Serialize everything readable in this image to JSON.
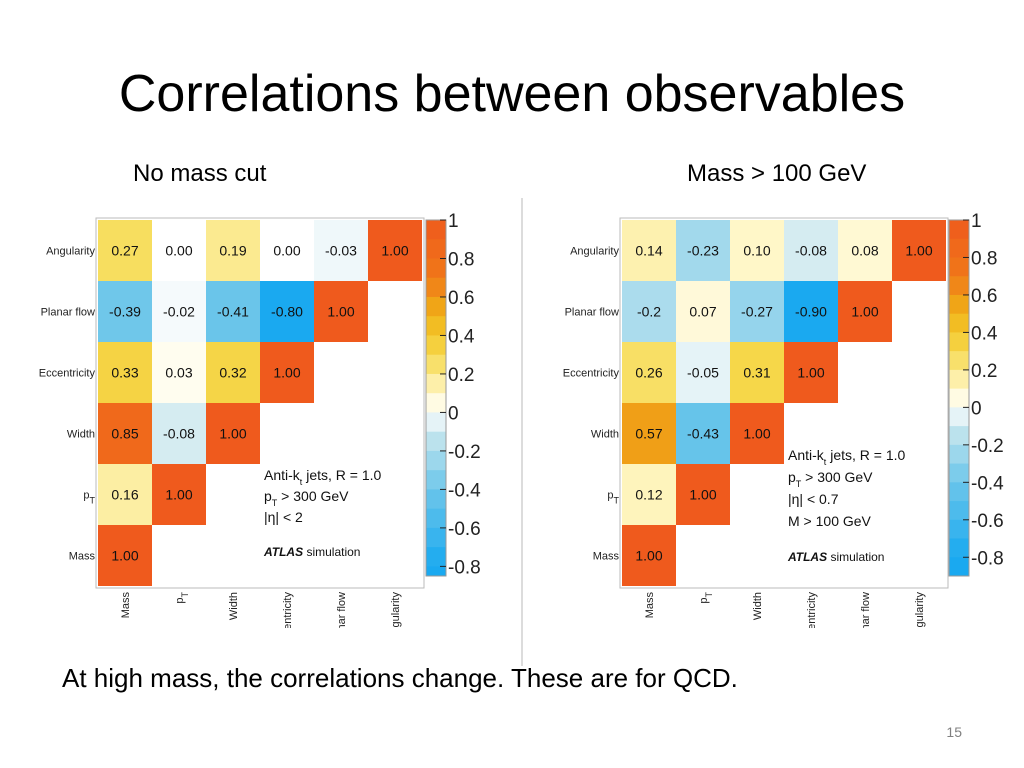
{
  "slide": {
    "title": "Correlations between observables",
    "caption": "At high mass, the correlations change. These are for QCD.",
    "page_number": "15"
  },
  "colorscale": {
    "stops": [
      {
        "value": -0.8,
        "color": "#1aa9f0"
      },
      {
        "value": -0.4,
        "color": "#6cc6ea"
      },
      {
        "value": -0.1,
        "color": "#cbe7ee"
      },
      {
        "value": 0.0,
        "color": "#ffffff"
      },
      {
        "value": 0.1,
        "color": "#fff7c8"
      },
      {
        "value": 0.3,
        "color": "#f6d94c"
      },
      {
        "value": 0.5,
        "color": "#f0b416"
      },
      {
        "value": 0.7,
        "color": "#f07818"
      },
      {
        "value": 1.0,
        "color": "#ef5a1d"
      }
    ]
  },
  "chart_data": [
    {
      "type": "heatmap",
      "title": "No mass cut",
      "x_labels": [
        "Mass",
        "pT",
        "Width",
        "Eccentricity",
        "Planar flow",
        "Angularity"
      ],
      "y_labels": [
        "Angularity",
        "Planar flow",
        "Eccentricity",
        "Width",
        "pT",
        "Mass"
      ],
      "values": [
        [
          "0.27",
          "0.00",
          "0.19",
          "0.00",
          "-0.03",
          "1.00"
        ],
        [
          "-0.39",
          "-0.02",
          "-0.41",
          "-0.80",
          "1.00",
          null
        ],
        [
          "0.33",
          "0.03",
          "0.32",
          "1.00",
          null,
          null
        ],
        [
          "0.85",
          "-0.08",
          "1.00",
          null,
          null,
          null
        ],
        [
          "0.16",
          "1.00",
          null,
          null,
          null,
          null
        ],
        [
          "1.00",
          null,
          null,
          null,
          null,
          null
        ]
      ],
      "colorbar_ticks": [
        "1",
        "0.8",
        "0.6",
        "0.4",
        "0.2",
        "0",
        "-0.2",
        "-0.4",
        "-0.6",
        "-0.8"
      ],
      "colorbar_range": [
        -0.85,
        1.0
      ],
      "annotation": [
        "Anti-kt jets, R = 1.0",
        "pT > 300 GeV",
        "|η| < 2"
      ],
      "watermark": {
        "bold": "ATLAS",
        "text": "simulation"
      }
    },
    {
      "type": "heatmap",
      "title": "Mass > 100 GeV",
      "x_labels": [
        "Mass",
        "pT",
        "Width",
        "Eccentricity",
        "Planar flow",
        "Angularity"
      ],
      "y_labels": [
        "Angularity",
        "Planar flow",
        "Eccentricity",
        "Width",
        "pT",
        "Mass"
      ],
      "values": [
        [
          "0.14",
          "-0.23",
          "0.10",
          "-0.08",
          "0.08",
          "1.00"
        ],
        [
          "-0.2",
          "0.07",
          "-0.27",
          "-0.90",
          "1.00",
          null
        ],
        [
          "0.26",
          "-0.05",
          "0.31",
          "1.00",
          null,
          null
        ],
        [
          "0.57",
          "-0.43",
          "1.00",
          null,
          null,
          null
        ],
        [
          "0.12",
          "1.00",
          null,
          null,
          null,
          null
        ],
        [
          "1.00",
          null,
          null,
          null,
          null,
          null
        ]
      ],
      "colorbar_ticks": [
        "1",
        "0.8",
        "0.6",
        "0.4",
        "0.2",
        "0",
        "-0.2",
        "-0.4",
        "-0.6",
        "-0.8"
      ],
      "colorbar_range": [
        -0.9,
        1.0
      ],
      "annotation": [
        "Anti-kt jets, R = 1.0",
        "pT > 300 GeV",
        "|η| < 0.7",
        "M > 100 GeV"
      ],
      "watermark": {
        "bold": "ATLAS",
        "text": "simulation"
      }
    }
  ]
}
